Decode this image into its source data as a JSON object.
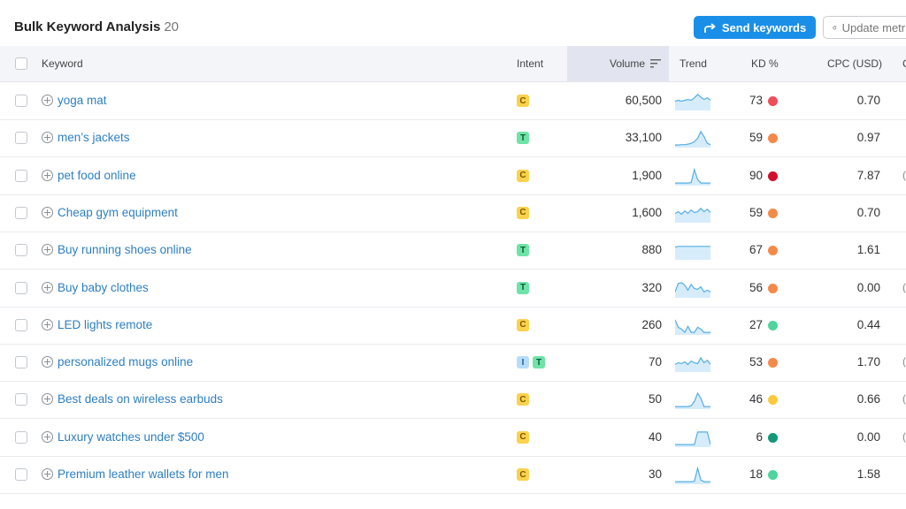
{
  "header": {
    "title": "Bulk Keyword Analysis",
    "count": "20",
    "send_label": "Send keywords",
    "update_label": "Update metrics",
    "accent": "#1a8fe8"
  },
  "columns": {
    "keyword": "Keyword",
    "intent": "Intent",
    "volume": "Volume",
    "trend": "Trend",
    "kd": "KD %",
    "cpc": "CPC (USD)",
    "next": "C"
  },
  "rows": [
    {
      "keyword": "yoga mat",
      "intent": [
        "C"
      ],
      "volume": "60,500",
      "kd": "73",
      "kd_color": "#ee4d5a",
      "cpc": "0.70",
      "edge": "",
      "trend": [
        0.5,
        0.55,
        0.5,
        0.55,
        0.6,
        0.55,
        0.7,
        0.9,
        0.75,
        0.6,
        0.7,
        0.55
      ]
    },
    {
      "keyword": "men’s jackets",
      "intent": [
        "T"
      ],
      "volume": "33,100",
      "kd": "59",
      "kd_color": "#f5894a",
      "cpc": "0.97",
      "edge": "",
      "trend": [
        0.1,
        0.1,
        0.12,
        0.12,
        0.15,
        0.2,
        0.3,
        0.5,
        0.9,
        0.6,
        0.2,
        0.12
      ]
    },
    {
      "keyword": "pet food online",
      "intent": [
        "C"
      ],
      "volume": "1,900",
      "kd": "90",
      "kd_color": "#d0102e",
      "cpc": "7.87",
      "edge": "(",
      "trend": [
        0.1,
        0.1,
        0.1,
        0.1,
        0.1,
        0.12,
        0.9,
        0.3,
        0.1,
        0.1,
        0.1,
        0.1
      ]
    },
    {
      "keyword": "Cheap gym equipment",
      "intent": [
        "C"
      ],
      "volume": "1,600",
      "kd": "59",
      "kd_color": "#f5894a",
      "cpc": "0.70",
      "edge": "",
      "trend": [
        0.5,
        0.6,
        0.45,
        0.65,
        0.5,
        0.7,
        0.55,
        0.6,
        0.8,
        0.6,
        0.75,
        0.55
      ]
    },
    {
      "keyword": "Buy running shoes online",
      "intent": [
        "T"
      ],
      "volume": "880",
      "kd": "67",
      "kd_color": "#f5894a",
      "cpc": "1.61",
      "edge": "",
      "trend": [
        0.7,
        0.75,
        0.75,
        0.75,
        0.75,
        0.75,
        0.75,
        0.75,
        0.75,
        0.75,
        0.75,
        0.75
      ]
    },
    {
      "keyword": "Buy baby clothes",
      "intent": [
        "T"
      ],
      "volume": "320",
      "kd": "56",
      "kd_color": "#f5894a",
      "cpc": "0.00",
      "edge": "(",
      "trend": [
        0.3,
        0.8,
        0.85,
        0.7,
        0.4,
        0.75,
        0.5,
        0.45,
        0.6,
        0.3,
        0.4,
        0.3
      ]
    },
    {
      "keyword": "LED lights remote",
      "intent": [
        "C"
      ],
      "volume": "260",
      "kd": "27",
      "kd_color": "#4fd49c",
      "cpc": "0.44",
      "edge": "",
      "trend": [
        0.85,
        0.4,
        0.3,
        0.1,
        0.45,
        0.1,
        0.1,
        0.4,
        0.3,
        0.1,
        0.1,
        0.1
      ]
    },
    {
      "keyword": "personalized mugs online",
      "intent": [
        "I",
        "T"
      ],
      "volume": "70",
      "kd": "53",
      "kd_color": "#f5894a",
      "cpc": "1.70",
      "edge": "(",
      "trend": [
        0.4,
        0.5,
        0.45,
        0.55,
        0.4,
        0.6,
        0.5,
        0.45,
        0.8,
        0.5,
        0.65,
        0.4
      ]
    },
    {
      "keyword": "Best deals on wireless earbuds",
      "intent": [
        "C"
      ],
      "volume": "50",
      "kd": "46",
      "kd_color": "#fbc93d",
      "cpc": "0.66",
      "edge": "(",
      "trend": [
        0.1,
        0.1,
        0.1,
        0.1,
        0.1,
        0.15,
        0.4,
        0.9,
        0.6,
        0.1,
        0.1,
        0.1
      ]
    },
    {
      "keyword": "Luxury watches under $500",
      "intent": [
        "C"
      ],
      "volume": "40",
      "kd": "6",
      "kd_color": "#11997a",
      "cpc": "0.00",
      "edge": "(",
      "trend": [
        0.1,
        0.1,
        0.1,
        0.1,
        0.1,
        0.1,
        0.1,
        0.85,
        0.85,
        0.85,
        0.85,
        0.1
      ]
    },
    {
      "keyword": "Premium leather wallets for men",
      "intent": [
        "C"
      ],
      "volume": "30",
      "kd": "18",
      "kd_color": "#4fd49c",
      "cpc": "1.58",
      "edge": "",
      "trend": [
        0.1,
        0.1,
        0.1,
        0.1,
        0.1,
        0.1,
        0.12,
        0.9,
        0.2,
        0.1,
        0.1,
        0.1
      ]
    }
  ]
}
